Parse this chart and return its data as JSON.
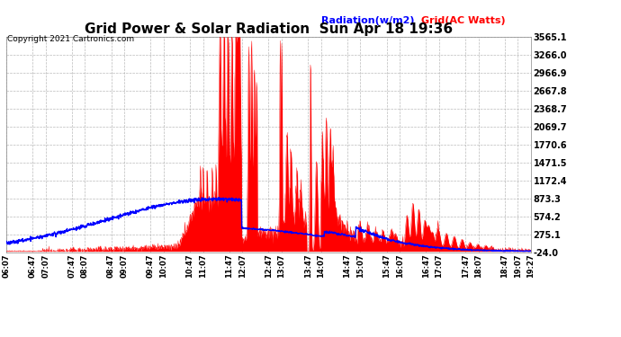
{
  "title": "Grid Power & Solar Radiation  Sun Apr 18 19:36",
  "copyright": "Copyright 2021 Cartronics.com",
  "legend_radiation": "Radiation(w/m2)",
  "legend_grid": "Grid(AC Watts)",
  "yticks": [
    3565.1,
    3266.0,
    2966.9,
    2667.8,
    2368.7,
    2069.7,
    1770.6,
    1471.5,
    1172.4,
    873.3,
    574.2,
    275.1,
    -24.0
  ],
  "ylim": [
    -24.0,
    3565.1
  ],
  "xtick_labels": [
    "06:07",
    "06:47",
    "07:07",
    "07:47",
    "08:07",
    "08:47",
    "09:07",
    "09:47",
    "10:07",
    "10:47",
    "11:07",
    "11:47",
    "12:07",
    "12:47",
    "13:07",
    "13:47",
    "14:07",
    "14:47",
    "15:07",
    "15:47",
    "16:07",
    "16:47",
    "17:07",
    "17:47",
    "18:07",
    "18:47",
    "19:07",
    "19:27"
  ],
  "plot_bg": "#ffffff",
  "fig_bg": "#ffffff",
  "grid_color": "#aaaaaa",
  "radiation_color": "#0000ff",
  "grid_fill_color": "#ff0000",
  "title_color": "#000000",
  "copyright_color": "#000000",
  "legend_radiation_color": "#0000ff",
  "legend_grid_color": "#ff0000",
  "yticklabel_fontsize": 7,
  "xticklabel_fontsize": 6
}
